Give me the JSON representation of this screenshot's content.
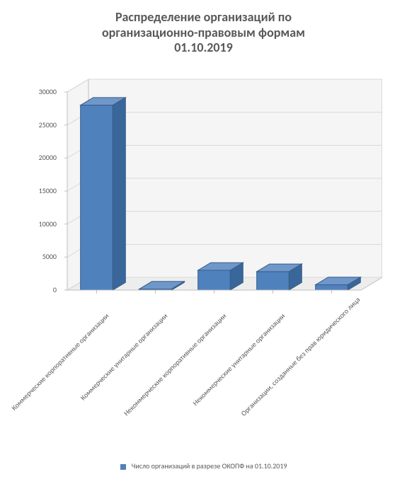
{
  "chart": {
    "type": "3d-bar",
    "title_lines": [
      "Распределение организаций по",
      "организационно-правовым формам",
      "01.10.2019"
    ],
    "title_fontsize": 18,
    "title_color": "#595959",
    "background_color": "#ffffff",
    "categories": [
      "Коммерческие корпоративные организации",
      "Коммерческие унитарные организации",
      "Некоммерческие корпоративные организации",
      "Некоммерческие унитарные организации",
      "Организации, созданные без прав юридического лица"
    ],
    "values": [
      28000,
      150,
      3000,
      2800,
      800
    ],
    "bar_fill": "#4f81bd",
    "bar_top": "#6f97c9",
    "bar_side": "#3a6799",
    "bar_stroke": "#385d8a",
    "ylim": [
      0,
      30000
    ],
    "ytick_step": 5000,
    "yticks": [
      0,
      5000,
      10000,
      15000,
      20000,
      25000,
      30000
    ],
    "axis_color": "#bfbfbf",
    "grid_color": "#d9d9d9",
    "floor_fill": "#ededed",
    "wall_fill": "#f5f5f5",
    "label_fontsize": 10,
    "label_color": "#595959",
    "legend_label": "Число организаций в разрезе ОКОПФ на 01.10.2019",
    "legend_swatch": "#4f81bd"
  }
}
